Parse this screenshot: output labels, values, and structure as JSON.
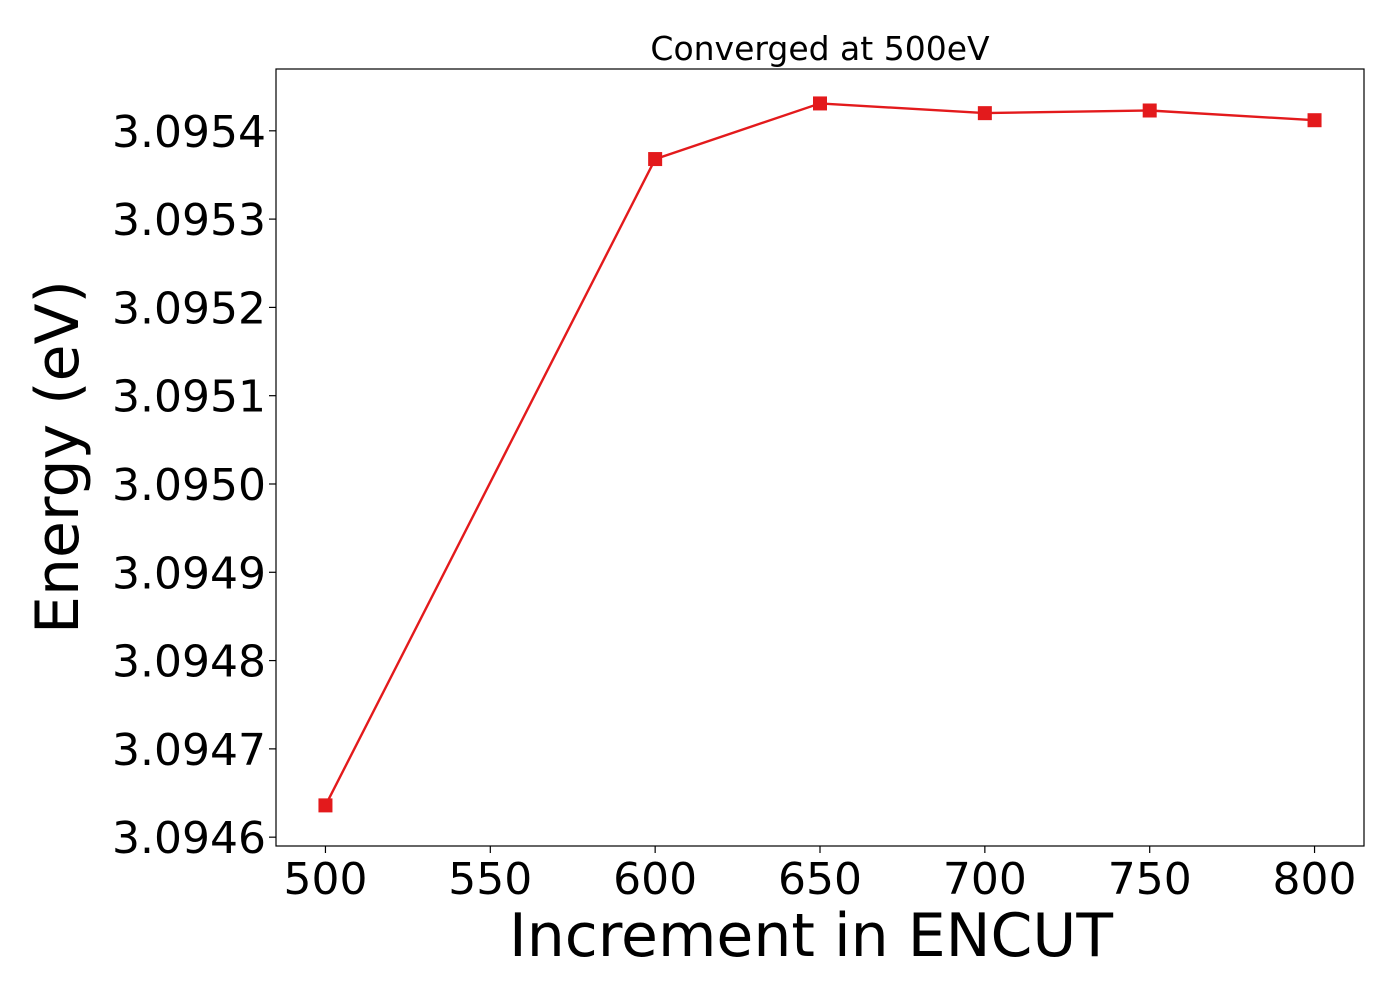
{
  "chart_data": {
    "type": "line",
    "title": "Converged at 500eV",
    "xlabel": "Increment in ENCUT",
    "ylabel": "Energy (eV)",
    "x": [
      500,
      600,
      650,
      700,
      750,
      800
    ],
    "xticks": [
      500,
      550,
      600,
      650,
      700,
      750,
      800
    ],
    "xtick_labels": [
      "500",
      "550",
      "600",
      "650",
      "700",
      "750",
      "800"
    ],
    "yticks": [
      3.0946,
      3.0947,
      3.0948,
      3.0949,
      3.095,
      3.0951,
      3.0952,
      3.0953,
      3.0954
    ],
    "ytick_labels": [
      "3.0946",
      "3.0947",
      "3.0948",
      "3.0949",
      "3.0950",
      "3.0951",
      "3.0952",
      "3.0953",
      "3.0954"
    ],
    "xlim": [
      485,
      815
    ],
    "ylim": [
      3.09459,
      3.09547
    ],
    "grid": false,
    "series": [
      {
        "values": [
          3.094636,
          3.095368,
          3.095431,
          3.09542,
          3.095423,
          3.095412
        ],
        "color": "#e31a1c",
        "marker": "square"
      }
    ]
  }
}
